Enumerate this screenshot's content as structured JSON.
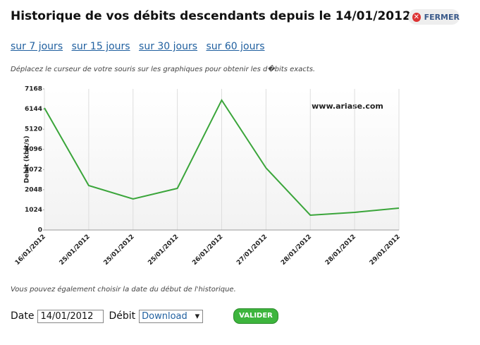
{
  "header": {
    "title": "Historique de vos débits descendants depuis le 14/01/2012",
    "close": "FERMER"
  },
  "links": [
    "sur 7 jours",
    "sur 15 jours",
    "sur 30 jours",
    "sur 60 jours"
  ],
  "instruction": "Déplacez le curseur de votre souris sur les graphiques pour obtenir les d�bits exacts.",
  "chart_data": {
    "type": "line",
    "y_label": "Debit (kbit/s)",
    "watermark": "www.ariase.com",
    "categories": [
      "16/01/2012",
      "25/01/2012",
      "25/01/2012",
      "25/01/2012",
      "26/01/2012",
      "27/01/2012",
      "28/01/2012",
      "28/01/2012",
      "29/01/2012"
    ],
    "values": [
      6200,
      2258,
      1577,
      2115,
      6595,
      3154,
      753,
      896,
      1111
    ],
    "color": "#3aa53a",
    "ylim": [
      0,
      7168
    ],
    "yticks": [
      0,
      1024,
      2048,
      3072,
      4096,
      5120,
      6144,
      7168
    ],
    "grid": true
  },
  "footer_note": "Vous pouvez également choisir la date du début de l'historique.",
  "form": {
    "date_label": "Date",
    "date_value": "14/01/2012",
    "debit_label": "Débit",
    "debit_value": "Download",
    "submit": "VALIDER"
  }
}
